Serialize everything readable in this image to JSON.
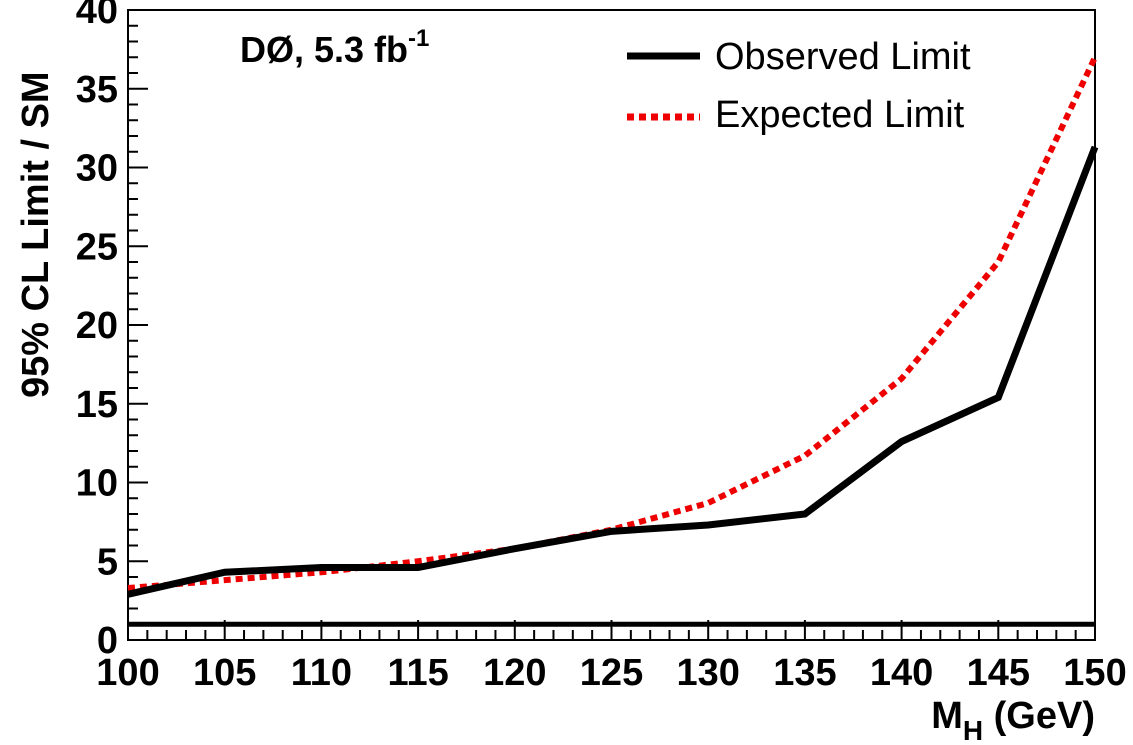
{
  "chart_data": {
    "type": "line",
    "title": "",
    "annotation": {
      "main": "DØ, 5.3 fb",
      "sup": "-1"
    },
    "xlabel": {
      "main": "M",
      "sub": "H",
      "rest": " (GeV)"
    },
    "ylabel": "95% CL Limit / SM",
    "xlim": [
      100,
      150
    ],
    "ylim": [
      0,
      40
    ],
    "x_ticks": [
      100,
      105,
      110,
      115,
      120,
      125,
      130,
      135,
      140,
      145,
      150
    ],
    "y_ticks": [
      0,
      5,
      10,
      15,
      20,
      25,
      30,
      35,
      40
    ],
    "grid": false,
    "legend_position": "top-right",
    "series": [
      {
        "name": "Observed Limit",
        "style": "solid",
        "color": "#000000",
        "x": [
          100,
          105,
          110,
          115,
          120,
          125,
          130,
          135,
          140,
          145,
          150
        ],
        "y": [
          2.9,
          4.3,
          4.6,
          4.6,
          5.8,
          6.9,
          7.3,
          8.0,
          12.6,
          15.4,
          31.3
        ]
      },
      {
        "name": "Expected Limit",
        "style": "dotted",
        "color": "#ee0000",
        "x": [
          100,
          105,
          110,
          115,
          120,
          125,
          130,
          135,
          140,
          145,
          150
        ],
        "y": [
          3.3,
          3.8,
          4.3,
          5.0,
          5.8,
          7.0,
          8.7,
          11.7,
          16.6,
          24.0,
          37.0
        ]
      }
    ],
    "reference_line": {
      "y": 1,
      "color": "#000000"
    }
  }
}
